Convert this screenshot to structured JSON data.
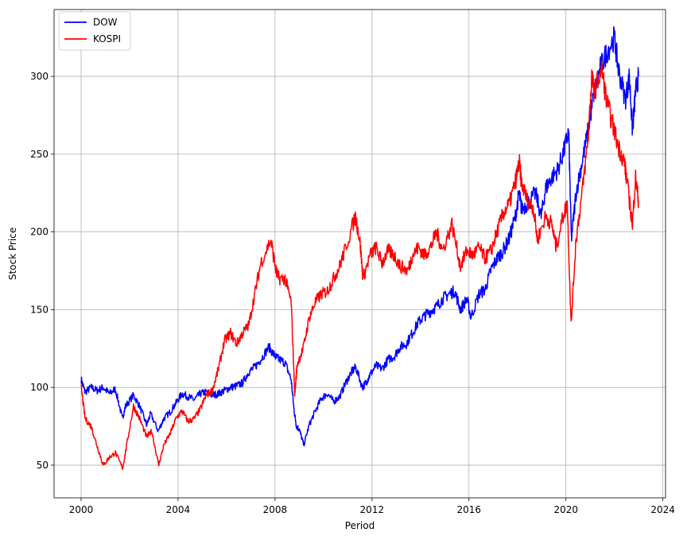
{
  "chart_data": {
    "type": "line",
    "title": "",
    "xlabel": "Period",
    "ylabel": "Stock Price",
    "xlim": [
      "1998-11-20",
      "2024-02-10"
    ],
    "ylim": [
      29,
      343
    ],
    "xticks": [
      "2000",
      "2004",
      "2008",
      "2012",
      "2016",
      "2020",
      "2024"
    ],
    "yticks": [
      50,
      100,
      150,
      200,
      250,
      300
    ],
    "grid": true,
    "legend": "top-left",
    "series": [
      {
        "name": "DOW",
        "color": "#0000ff",
        "x": [
          "2000-01-03",
          "2000-03-01",
          "2000-06-01",
          "2000-09-01",
          "2000-12-01",
          "2001-03-01",
          "2001-06-01",
          "2001-09-15",
          "2001-11-01",
          "2002-03-01",
          "2002-06-01",
          "2002-09-15",
          "2002-11-15",
          "2003-03-10",
          "2003-06-01",
          "2003-09-01",
          "2003-12-01",
          "2004-03-01",
          "2004-06-01",
          "2004-09-01",
          "2004-12-01",
          "2005-03-01",
          "2005-06-01",
          "2005-09-01",
          "2005-12-01",
          "2006-03-01",
          "2006-06-01",
          "2006-09-01",
          "2006-12-01",
          "2007-03-01",
          "2007-06-01",
          "2007-10-01",
          "2008-01-01",
          "2008-03-01",
          "2008-06-01",
          "2008-09-01",
          "2008-10-15",
          "2008-11-20",
          "2009-01-01",
          "2009-03-09",
          "2009-06-01",
          "2009-09-01",
          "2009-12-01",
          "2010-03-01",
          "2010-06-01",
          "2010-09-01",
          "2010-12-01",
          "2011-03-01",
          "2011-05-01",
          "2011-08-10",
          "2011-10-01",
          "2011-12-01",
          "2012-03-01",
          "2012-06-01",
          "2012-09-01",
          "2012-12-01",
          "2013-03-01",
          "2013-06-01",
          "2013-09-01",
          "2013-12-01",
          "2014-03-01",
          "2014-06-01",
          "2014-09-01",
          "2014-12-01",
          "2015-03-01",
          "2015-06-01",
          "2015-08-25",
          "2015-12-01",
          "2016-02-01",
          "2016-06-01",
          "2016-09-01",
          "2016-12-01",
          "2017-03-01",
          "2017-06-01",
          "2017-09-01",
          "2017-12-01",
          "2018-01-26",
          "2018-03-01",
          "2018-06-01",
          "2018-10-01",
          "2018-12-24",
          "2019-03-01",
          "2019-06-01",
          "2019-09-01",
          "2019-12-01",
          "2020-02-12",
          "2020-03-23",
          "2020-06-01",
          "2020-09-01",
          "2020-12-01",
          "2021-03-01",
          "2021-06-01",
          "2021-09-01",
          "2021-12-31",
          "2022-03-01",
          "2022-06-15",
          "2022-08-15",
          "2022-09-30",
          "2022-11-15",
          "2022-12-30"
        ],
        "values": [
          105,
          97,
          100,
          98,
          100,
          96,
          99,
          80,
          88,
          95,
          88,
          76,
          83,
          72,
          80,
          84,
          90,
          96,
          94,
          92,
          96,
          97,
          95,
          96,
          98,
          100,
          101,
          103,
          110,
          113,
          118,
          126,
          120,
          118,
          116,
          105,
          85,
          75,
          73,
          63,
          76,
          85,
          93,
          96,
          91,
          94,
          103,
          110,
          113,
          100,
          103,
          108,
          114,
          112,
          118,
          120,
          126,
          128,
          135,
          142,
          146,
          149,
          152,
          157,
          160,
          162,
          150,
          157,
          145,
          160,
          163,
          176,
          183,
          188,
          196,
          210,
          225,
          215,
          218,
          225,
          210,
          228,
          235,
          240,
          252,
          265,
          195,
          225,
          245,
          265,
          290,
          305,
          315,
          325,
          305,
          285,
          300,
          265,
          290,
          300
        ]
      },
      {
        "name": "KOSPI",
        "color": "#ff0000",
        "x": [
          "2000-01-03",
          "2000-03-01",
          "2000-06-01",
          "2000-09-01",
          "2000-12-01",
          "2001-03-01",
          "2001-06-01",
          "2001-09-20",
          "2001-11-15",
          "2002-03-01",
          "2002-06-01",
          "2002-09-15",
          "2002-12-01",
          "2003-03-15",
          "2003-06-01",
          "2003-09-01",
          "2003-12-01",
          "2004-03-01",
          "2004-06-01",
          "2004-09-01",
          "2004-12-01",
          "2005-03-01",
          "2005-06-01",
          "2005-09-01",
          "2005-12-01",
          "2006-03-01",
          "2006-06-01",
          "2006-09-01",
          "2006-12-01",
          "2007-03-01",
          "2007-06-01",
          "2007-10-30",
          "2008-01-15",
          "2008-03-01",
          "2008-06-01",
          "2008-09-01",
          "2008-10-25",
          "2008-12-01",
          "2009-03-01",
          "2009-06-01",
          "2009-09-01",
          "2009-12-01",
          "2010-03-01",
          "2010-06-01",
          "2010-09-01",
          "2010-12-01",
          "2011-04-27",
          "2011-07-01",
          "2011-08-20",
          "2011-12-01",
          "2012-03-01",
          "2012-06-01",
          "2012-09-01",
          "2012-12-01",
          "2013-03-01",
          "2013-06-25",
          "2013-09-01",
          "2013-12-01",
          "2014-03-01",
          "2014-06-01",
          "2014-09-01",
          "2014-12-01",
          "2015-04-20",
          "2015-08-25",
          "2015-12-01",
          "2016-03-01",
          "2016-06-01",
          "2016-09-01",
          "2016-12-01",
          "2017-03-01",
          "2017-06-01",
          "2017-09-01",
          "2017-12-01",
          "2018-01-29",
          "2018-03-01",
          "2018-06-01",
          "2018-09-01",
          "2018-10-29",
          "2019-03-01",
          "2019-06-01",
          "2019-08-06",
          "2019-12-01",
          "2020-01-22",
          "2020-03-19",
          "2020-06-01",
          "2020-09-01",
          "2020-12-01",
          "2021-01-25",
          "2021-03-01",
          "2021-06-25",
          "2021-09-01",
          "2021-12-01",
          "2022-03-01",
          "2022-06-01",
          "2022-07-01",
          "2022-09-30",
          "2022-11-15",
          "2022-12-30"
        ],
        "values": [
          100,
          80,
          75,
          62,
          50,
          55,
          58,
          48,
          62,
          88,
          80,
          68,
          72,
          50,
          63,
          70,
          80,
          85,
          78,
          80,
          86,
          95,
          98,
          112,
          130,
          135,
          128,
          135,
          140,
          160,
          180,
          195,
          175,
          170,
          170,
          155,
          95,
          115,
          125,
          145,
          155,
          160,
          162,
          170,
          178,
          190,
          210,
          195,
          170,
          185,
          190,
          180,
          188,
          185,
          178,
          175,
          185,
          190,
          185,
          190,
          200,
          188,
          205,
          178,
          188,
          185,
          190,
          183,
          188,
          200,
          212,
          218,
          232,
          245,
          232,
          220,
          215,
          195,
          210,
          205,
          190,
          212,
          218,
          140,
          195,
          225,
          260,
          300,
          290,
          305,
          285,
          270,
          255,
          245,
          235,
          205,
          235,
          220
        ]
      }
    ]
  }
}
